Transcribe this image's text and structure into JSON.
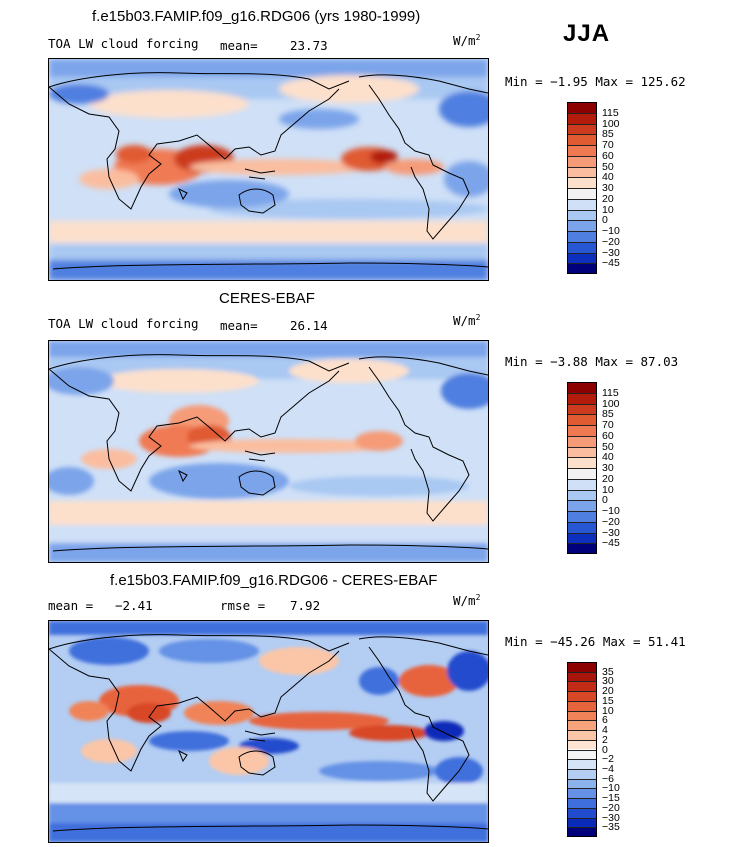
{
  "header": {
    "season": "JJA",
    "colors": {
      "deep_red": "#8b0000",
      "deep_blue": "#00007a"
    }
  },
  "chart_data": [
    {
      "type": "heatmap",
      "title": "f.e15b03.FAMIP.f09_g16.RDG06 (yrs 1980-1999)",
      "left_label": "TOA LW cloud forcing",
      "stat1_label": "mean=",
      "stat1_value": "23.73",
      "stat2_label": "",
      "stat2_value": "",
      "units": "W/m",
      "units_sup": "2",
      "min_label": "Min =",
      "min_value": "−1.95",
      "max_label": "Max =",
      "max_value": "125.62",
      "levels": [
        "115",
        "100",
        "85",
        "70",
        "60",
        "50",
        "40",
        "30",
        "20",
        "10",
        "0",
        "−10",
        "−20",
        "−30",
        "−45"
      ],
      "colors": [
        "#8b0000",
        "#b31b0b",
        "#cc3b1d",
        "#e05a32",
        "#ef7a52",
        "#f59b78",
        "#fbbd9f",
        "#fde0cc",
        "#f4f1f2",
        "#cfe0f7",
        "#a9c8f2",
        "#7ca4ea",
        "#4f7fe0",
        "#2757d3",
        "#0c2fbd",
        "#00007a"
      ],
      "ylabel": "",
      "xlabel": ""
    },
    {
      "type": "heatmap",
      "title": "CERES-EBAF",
      "left_label": "TOA LW cloud forcing",
      "stat1_label": "mean=",
      "stat1_value": "26.14",
      "stat2_label": "",
      "stat2_value": "",
      "units": "W/m",
      "units_sup": "2",
      "min_label": "Min =",
      "min_value": "−3.88",
      "max_label": "Max =",
      "max_value": "87.03",
      "levels": [
        "115",
        "100",
        "85",
        "70",
        "60",
        "50",
        "40",
        "30",
        "20",
        "10",
        "0",
        "−10",
        "−20",
        "−30",
        "−45"
      ],
      "colors": [
        "#8b0000",
        "#b31b0b",
        "#cc3b1d",
        "#e05a32",
        "#ef7a52",
        "#f59b78",
        "#fbbd9f",
        "#fde0cc",
        "#f4f1f2",
        "#cfe0f7",
        "#a9c8f2",
        "#7ca4ea",
        "#4f7fe0",
        "#2757d3",
        "#0c2fbd",
        "#00007a"
      ],
      "ylabel": "",
      "xlabel": ""
    },
    {
      "type": "heatmap",
      "title": "f.e15b03.FAMIP.f09_g16.RDG06 - CERES-EBAF",
      "left_label": "",
      "stat1_label": "mean =",
      "stat1_value": "−2.41",
      "stat2_label": "rmse =",
      "stat2_value": "7.92",
      "units": "W/m",
      "units_sup": "2",
      "min_label": "Min =",
      "min_value": "−45.26",
      "max_label": "Max =",
      "max_value": "51.41",
      "levels": [
        "35",
        "30",
        "20",
        "15",
        "10",
        "6",
        "4",
        "2",
        "0",
        "−2",
        "−4",
        "−6",
        "−10",
        "−15",
        "−20",
        "−30",
        "−35"
      ],
      "colors": [
        "#8b0000",
        "#a8150a",
        "#c22c17",
        "#d84726",
        "#e7643c",
        "#f08458",
        "#f6a47c",
        "#fbc6a7",
        "#fde3d2",
        "#f4f4f6",
        "#d6e4f7",
        "#b3cdf3",
        "#8cb2ee",
        "#6592e6",
        "#3f6fdc",
        "#204ccd",
        "#0a2bb8",
        "#00007a"
      ],
      "ylabel": "",
      "xlabel": ""
    }
  ]
}
